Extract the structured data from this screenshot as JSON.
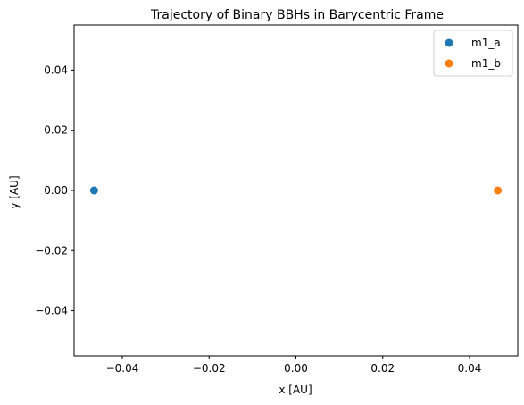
{
  "chart_data": {
    "type": "scatter",
    "title": "Trajectory of Binary BBHs in Barycentric Frame",
    "xlabel": "x [AU]",
    "ylabel": "y [AU]",
    "xlim": [
      -0.0511,
      0.0511
    ],
    "ylim": [
      -0.055,
      0.055
    ],
    "xticks": [
      -0.04,
      -0.02,
      0.0,
      0.02,
      0.04
    ],
    "xtick_labels": [
      "−0.04",
      "−0.02",
      "0.00",
      "0.02",
      "0.04"
    ],
    "yticks": [
      -0.04,
      -0.02,
      0.0,
      0.02,
      0.04
    ],
    "ytick_labels": [
      "−0.04",
      "−0.02",
      "0.00",
      "0.02",
      "0.04"
    ],
    "grid": false,
    "legend_position": "top-right",
    "series": [
      {
        "name": "m1_a",
        "color": "#1f77b4",
        "x": [
          -0.0465
        ],
        "y": [
          0.0
        ]
      },
      {
        "name": "m1_b",
        "color": "#ff7f0e",
        "x": [
          0.0465
        ],
        "y": [
          0.0
        ]
      }
    ]
  }
}
